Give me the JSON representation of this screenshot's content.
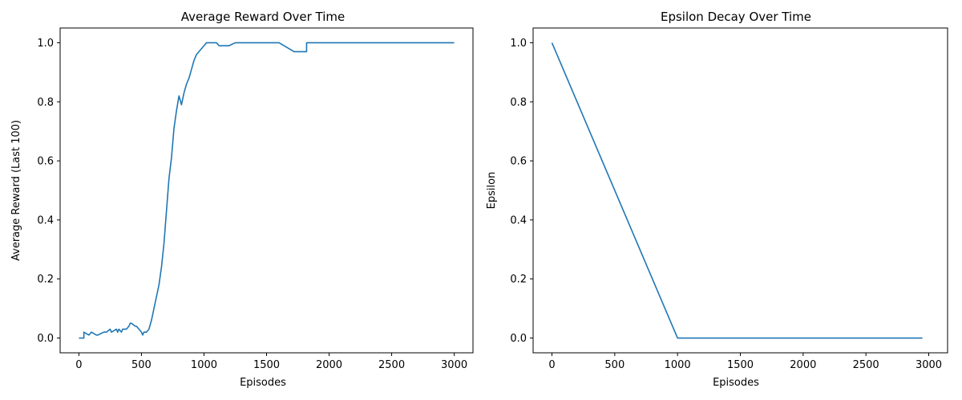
{
  "chart_data": [
    {
      "type": "line",
      "title": "Average Reward Over Time",
      "xlabel": "Episodes",
      "ylabel": "Average Reward (Last 100)",
      "xlim": [
        -150,
        3150
      ],
      "ylim": [
        -0.05,
        1.05
      ],
      "x_ticks": [
        0,
        500,
        1000,
        1500,
        2000,
        2500,
        3000
      ],
      "y_ticks": [
        0.0,
        0.2,
        0.4,
        0.6,
        0.8,
        1.0
      ],
      "x_tick_labels": [
        "0",
        "500",
        "1000",
        "1500",
        "2000",
        "2500",
        "3000"
      ],
      "y_tick_labels": [
        "0.0",
        "0.2",
        "0.4",
        "0.6",
        "0.8",
        "1.0"
      ],
      "grid": false,
      "color": "#1f77b4",
      "series": [
        {
          "x": [
            0,
            40,
            40,
            60,
            80,
            100,
            140,
            150,
            200,
            220,
            250,
            260,
            300,
            310,
            320,
            340,
            350,
            380,
            400,
            410,
            420,
            450,
            460,
            500,
            510,
            520,
            540,
            560,
            580,
            600,
            620,
            640,
            660,
            680,
            700,
            720,
            740,
            760,
            780,
            800,
            820,
            840,
            860,
            880,
            900,
            920,
            940,
            960,
            980,
            1000,
            1020,
            1050,
            1080,
            1100,
            1120,
            1140,
            1200,
            1250,
            1300,
            1350,
            1400,
            1600,
            1720,
            1720,
            1820,
            1820,
            2000,
            2500,
            3000
          ],
          "y": [
            0.0,
            0.0,
            0.02,
            0.015,
            0.01,
            0.02,
            0.01,
            0.01,
            0.02,
            0.02,
            0.03,
            0.02,
            0.03,
            0.02,
            0.03,
            0.02,
            0.03,
            0.03,
            0.04,
            0.05,
            0.05,
            0.04,
            0.04,
            0.02,
            0.01,
            0.02,
            0.02,
            0.03,
            0.06,
            0.1,
            0.14,
            0.18,
            0.24,
            0.32,
            0.43,
            0.54,
            0.61,
            0.71,
            0.77,
            0.82,
            0.79,
            0.83,
            0.86,
            0.88,
            0.91,
            0.94,
            0.96,
            0.97,
            0.98,
            0.99,
            1.0,
            1.0,
            1.0,
            1.0,
            0.99,
            0.99,
            0.99,
            1.0,
            1.0,
            1.0,
            1.0,
            1.0,
            0.97,
            0.97,
            0.97,
            1.0,
            1.0,
            1.0,
            1.0
          ]
        }
      ]
    },
    {
      "type": "line",
      "title": "Epsilon Decay Over Time",
      "xlabel": "Episodes",
      "ylabel": "Epsilon",
      "xlim": [
        -150,
        3150
      ],
      "ylim": [
        -0.05,
        1.05
      ],
      "x_ticks": [
        0,
        500,
        1000,
        1500,
        2000,
        2500,
        3000
      ],
      "y_ticks": [
        0.0,
        0.2,
        0.4,
        0.6,
        0.8,
        1.0
      ],
      "x_tick_labels": [
        "0",
        "500",
        "1000",
        "1500",
        "2000",
        "2500",
        "3000"
      ],
      "y_tick_labels": [
        "0.0",
        "0.2",
        "0.4",
        "0.6",
        "0.8",
        "1.0"
      ],
      "grid": false,
      "color": "#1f77b4",
      "series": [
        {
          "x": [
            0,
            1000,
            2950
          ],
          "y": [
            1.0,
            0.0,
            0.0
          ]
        }
      ]
    }
  ]
}
